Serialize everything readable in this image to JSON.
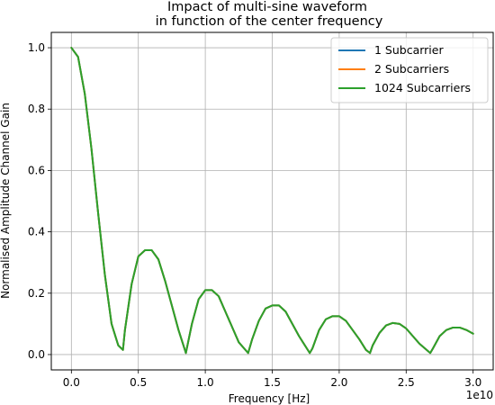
{
  "chart_data": {
    "type": "line",
    "title": [
      "Impact of multi-sine waveform",
      "in function of the center frequency"
    ],
    "xlabel": "Frequency [Hz]",
    "ylabel": "Normalised Amplitude Channel Gain",
    "x_offset_text": "1e10",
    "x_scale": 10000000000.0,
    "xlim": [
      -0.15,
      3.15
    ],
    "ylim": [
      -0.05,
      1.05
    ],
    "x_ticks": [
      0.0,
      0.5,
      1.0,
      1.5,
      2.0,
      2.5,
      3.0
    ],
    "x_tick_labels": [
      "0.0",
      "0.5",
      "1.0",
      "1.5",
      "2.0",
      "2.5",
      "3.0"
    ],
    "y_ticks": [
      0.0,
      0.2,
      0.4,
      0.6,
      0.8,
      1.0
    ],
    "y_tick_labels": [
      "0.0",
      "0.2",
      "0.4",
      "0.6",
      "0.8",
      "1.0"
    ],
    "grid": true,
    "legend_position": "upper right",
    "series": [
      {
        "name": "1 Subcarrier",
        "color": "#1f77b4",
        "x": [
          0,
          0.05,
          0.1,
          0.15,
          0.2,
          0.25,
          0.3,
          0.35,
          0.385,
          0.4,
          0.45,
          0.5,
          0.55,
          0.6,
          0.65,
          0.7,
          0.75,
          0.8,
          0.855,
          0.9,
          0.95,
          1.0,
          1.05,
          1.1,
          1.15,
          1.2,
          1.25,
          1.32,
          1.35,
          1.4,
          1.45,
          1.5,
          1.55,
          1.6,
          1.65,
          1.7,
          1.78,
          1.8,
          1.85,
          1.9,
          1.95,
          2.0,
          2.05,
          2.1,
          2.15,
          2.2,
          2.23,
          2.25,
          2.3,
          2.35,
          2.4,
          2.45,
          2.5,
          2.55,
          2.6,
          2.68,
          2.7,
          2.75,
          2.8,
          2.85,
          2.9,
          2.95,
          3.0
        ],
        "y": [
          1.0,
          0.97,
          0.85,
          0.67,
          0.46,
          0.26,
          0.1,
          0.03,
          0.015,
          0.08,
          0.23,
          0.32,
          0.34,
          0.34,
          0.31,
          0.24,
          0.16,
          0.08,
          0.005,
          0.1,
          0.18,
          0.21,
          0.21,
          0.19,
          0.14,
          0.09,
          0.04,
          0.005,
          0.05,
          0.11,
          0.15,
          0.16,
          0.16,
          0.14,
          0.1,
          0.06,
          0.005,
          0.02,
          0.08,
          0.115,
          0.125,
          0.125,
          0.11,
          0.08,
          0.05,
          0.015,
          0.005,
          0.03,
          0.07,
          0.095,
          0.103,
          0.1,
          0.085,
          0.06,
          0.035,
          0.005,
          0.02,
          0.06,
          0.08,
          0.088,
          0.088,
          0.08,
          0.068
        ]
      },
      {
        "name": "2 Subcarriers",
        "color": "#ff7f0e",
        "x": [
          0,
          0.05,
          0.1,
          0.15,
          0.2,
          0.25,
          0.3,
          0.35,
          0.385,
          0.4,
          0.45,
          0.5,
          0.55,
          0.6,
          0.65,
          0.7,
          0.75,
          0.8,
          0.855,
          0.9,
          0.95,
          1.0,
          1.05,
          1.1,
          1.15,
          1.2,
          1.25,
          1.32,
          1.35,
          1.4,
          1.45,
          1.5,
          1.55,
          1.6,
          1.65,
          1.7,
          1.78,
          1.8,
          1.85,
          1.9,
          1.95,
          2.0,
          2.05,
          2.1,
          2.15,
          2.2,
          2.23,
          2.25,
          2.3,
          2.35,
          2.4,
          2.45,
          2.5,
          2.55,
          2.6,
          2.68,
          2.7,
          2.75,
          2.8,
          2.85,
          2.9,
          2.95,
          3.0
        ],
        "y": [
          1.0,
          0.97,
          0.85,
          0.67,
          0.46,
          0.26,
          0.1,
          0.03,
          0.015,
          0.08,
          0.23,
          0.32,
          0.34,
          0.34,
          0.31,
          0.24,
          0.16,
          0.08,
          0.005,
          0.1,
          0.18,
          0.21,
          0.21,
          0.19,
          0.14,
          0.09,
          0.04,
          0.005,
          0.05,
          0.11,
          0.15,
          0.16,
          0.16,
          0.14,
          0.1,
          0.06,
          0.005,
          0.02,
          0.08,
          0.115,
          0.125,
          0.125,
          0.11,
          0.08,
          0.05,
          0.015,
          0.005,
          0.03,
          0.07,
          0.095,
          0.103,
          0.1,
          0.085,
          0.06,
          0.035,
          0.005,
          0.02,
          0.06,
          0.08,
          0.088,
          0.088,
          0.08,
          0.068
        ]
      },
      {
        "name": "1024 Subcarriers",
        "color": "#2ca02c",
        "x": [
          0,
          0.05,
          0.1,
          0.15,
          0.2,
          0.25,
          0.3,
          0.35,
          0.385,
          0.4,
          0.45,
          0.5,
          0.55,
          0.6,
          0.65,
          0.7,
          0.75,
          0.8,
          0.855,
          0.9,
          0.95,
          1.0,
          1.05,
          1.1,
          1.15,
          1.2,
          1.25,
          1.32,
          1.35,
          1.4,
          1.45,
          1.5,
          1.55,
          1.6,
          1.65,
          1.7,
          1.78,
          1.8,
          1.85,
          1.9,
          1.95,
          2.0,
          2.05,
          2.1,
          2.15,
          2.2,
          2.23,
          2.25,
          2.3,
          2.35,
          2.4,
          2.45,
          2.5,
          2.55,
          2.6,
          2.68,
          2.7,
          2.75,
          2.8,
          2.85,
          2.9,
          2.95,
          3.0
        ],
        "y": [
          1.0,
          0.97,
          0.85,
          0.67,
          0.46,
          0.26,
          0.1,
          0.03,
          0.015,
          0.08,
          0.23,
          0.32,
          0.34,
          0.34,
          0.31,
          0.24,
          0.16,
          0.08,
          0.005,
          0.1,
          0.18,
          0.21,
          0.21,
          0.19,
          0.14,
          0.09,
          0.04,
          0.005,
          0.05,
          0.11,
          0.15,
          0.16,
          0.16,
          0.14,
          0.1,
          0.06,
          0.005,
          0.02,
          0.08,
          0.115,
          0.125,
          0.125,
          0.11,
          0.08,
          0.05,
          0.015,
          0.005,
          0.03,
          0.07,
          0.095,
          0.103,
          0.1,
          0.085,
          0.06,
          0.035,
          0.005,
          0.02,
          0.06,
          0.08,
          0.088,
          0.088,
          0.08,
          0.068
        ]
      }
    ]
  }
}
